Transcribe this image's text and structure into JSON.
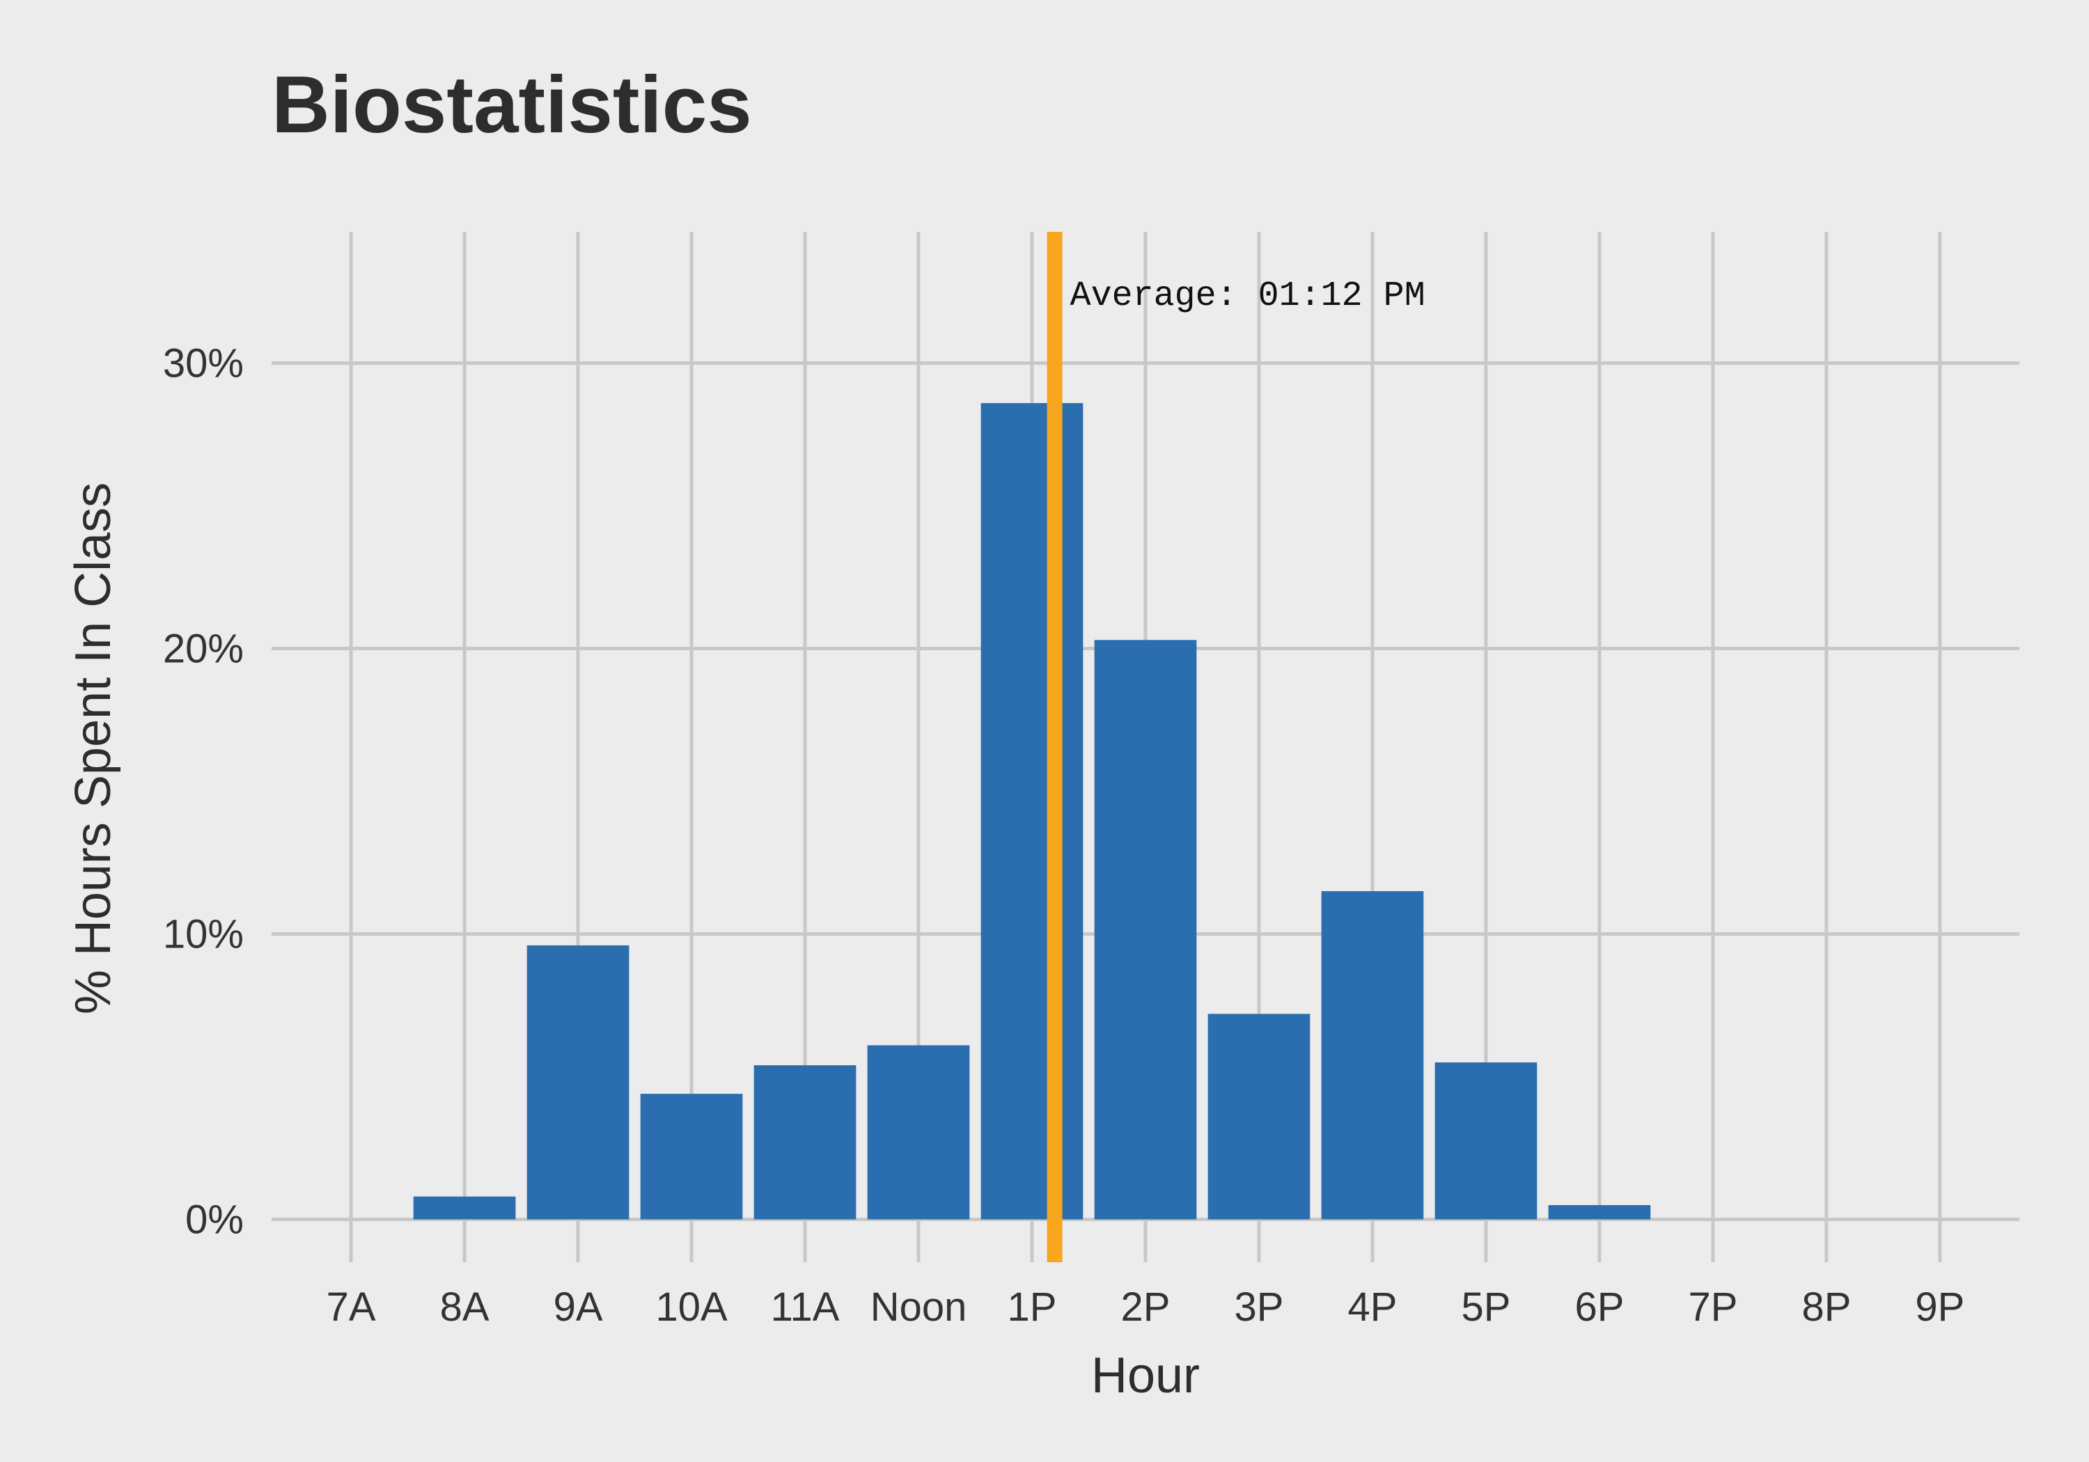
{
  "chart_data": {
    "type": "bar",
    "title": "Biostatistics",
    "xlabel": "Hour",
    "ylabel": "% Hours Spent In Class",
    "categories": [
      "7A",
      "8A",
      "9A",
      "10A",
      "11A",
      "Noon",
      "1P",
      "2P",
      "3P",
      "4P",
      "5P",
      "6P",
      "7P",
      "8P",
      "9P"
    ],
    "values": [
      0,
      0.8,
      9.6,
      4.4,
      5.4,
      6.1,
      28.6,
      20.3,
      7.2,
      11.5,
      5.5,
      0.5,
      0,
      0,
      0
    ],
    "ylim": [
      -1.5,
      34.6
    ],
    "yticks": [
      0,
      10,
      20,
      30
    ],
    "ytick_labels": [
      "0%",
      "10%",
      "20%",
      "30%"
    ],
    "grid": true,
    "legend": "none",
    "bar_color": "#2a6eb0",
    "average_line": {
      "label": "Average: 01:12 PM",
      "x_hour": 13.2,
      "color": "#f7a61d"
    }
  },
  "colors": {
    "background": "#ececec",
    "grid": "#c8c8c8"
  }
}
